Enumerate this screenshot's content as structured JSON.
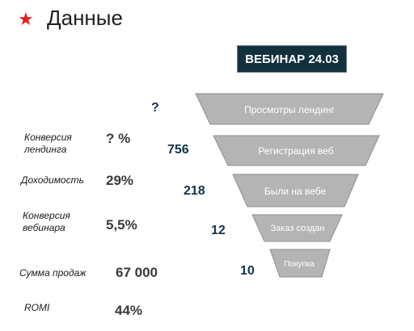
{
  "header": {
    "title": "Данные",
    "star_color": "#e02020"
  },
  "webinar_label": "ВЕБИНАР 24.03",
  "metrics": [
    {
      "label": "Конверсия лендинга",
      "value": "? %"
    },
    {
      "label": "Доходимость",
      "value": "29%"
    },
    {
      "label": "Конверсия вебинара",
      "value": "5,5%"
    },
    {
      "label": "Сумма продаж",
      "value": "67 000"
    },
    {
      "label": "ROMI",
      "value": "44%"
    }
  ],
  "funnel": {
    "fill_color": "#b4b4b4",
    "stages": [
      {
        "label": "Просмотры лендинг",
        "count": "?"
      },
      {
        "label": "Регистрация веб",
        "count": "756"
      },
      {
        "label": "Были на вебе",
        "count": "218"
      },
      {
        "label": "Заказ создан",
        "count": "12"
      },
      {
        "label": "Покупка",
        "count": "10"
      }
    ]
  }
}
